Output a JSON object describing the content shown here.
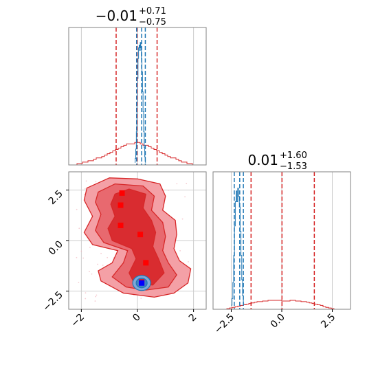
{
  "colors": {
    "red": "#d62728",
    "blue": "#1f77b4",
    "marker_red": "#ff0000",
    "marker_blue": "#0000ff",
    "grid": "#cccccc",
    "frame": "#808080"
  },
  "titles": {
    "x": {
      "main": "−0.01",
      "sup": "+0.71",
      "sub": "−0.75"
    },
    "y": {
      "main": "0.01",
      "sup": "+1.60",
      "sub": "−1.53"
    }
  },
  "chart_data": {
    "type": "corner",
    "grid": true,
    "x_param": {
      "range": [
        -2.45,
        2.45
      ],
      "ticks": [
        -2,
        0,
        2
      ],
      "tick_labels": [
        "−2",
        "0",
        "2"
      ],
      "quantiles_red": [
        -0.76,
        -0.01,
        0.7
      ],
      "quantiles_blue": [
        -0.03,
        0.15,
        0.28
      ],
      "hist_red": {
        "edges_start": -2.45,
        "bin": 0.098,
        "values": [
          0,
          0,
          0,
          0.01,
          0.01,
          0.02,
          0.02,
          0.03,
          0.03,
          0.04,
          0.05,
          0.05,
          0.06,
          0.07,
          0.08,
          0.09,
          0.1,
          0.11,
          0.12,
          0.13,
          0.14,
          0.15,
          0.15,
          0.15,
          0.16,
          0.16,
          0.15,
          0.14,
          0.14,
          0.13,
          0.12,
          0.11,
          0.1,
          0.09,
          0.08,
          0.07,
          0.06,
          0.05,
          0.05,
          0.04,
          0.03,
          0.02,
          0.02,
          0.01,
          0.01,
          0.0,
          0.0,
          0.0,
          0.0,
          0.0
        ]
      },
      "hist_blue": {
        "edges_start": -0.1,
        "bin": 0.02,
        "values": [
          0.02,
          0.05,
          0.12,
          0.25,
          0.45,
          0.65,
          0.8,
          0.88,
          0.9,
          0.86,
          0.92,
          0.88,
          0.8,
          0.7,
          0.55,
          0.4,
          0.25,
          0.13,
          0.06,
          0.02
        ]
      }
    },
    "y_param": {
      "range": [
        -3.4,
        3.4
      ],
      "ticks": [
        -2.5,
        0.0,
        2.5
      ],
      "tick_labels": [
        "−2.5",
        "0.0",
        "2.5"
      ],
      "quantiles_red": [
        -1.52,
        0.01,
        1.61
      ],
      "quantiles_blue": [
        -2.35,
        -2.08,
        -1.9
      ],
      "hist_red": {
        "edges_start": -3.4,
        "bin": 0.136,
        "values": [
          0,
          0,
          0,
          0,
          0,
          0.005,
          0.01,
          0.015,
          0.02,
          0.025,
          0.03,
          0.035,
          0.04,
          0.045,
          0.05,
          0.055,
          0.06,
          0.06,
          0.065,
          0.065,
          0.07,
          0.07,
          0.07,
          0.07,
          0.07,
          0.065,
          0.065,
          0.065,
          0.07,
          0.07,
          0.065,
          0.065,
          0.06,
          0.06,
          0.055,
          0.05,
          0.045,
          0.04,
          0.035,
          0.03,
          0.02,
          0.015,
          0.01,
          0.005,
          0,
          0,
          0,
          0,
          0,
          0
        ]
      },
      "hist_blue": {
        "edges_start": -2.5,
        "bin": 0.04,
        "values": [
          0.03,
          0.08,
          0.2,
          0.4,
          0.62,
          0.8,
          0.88,
          0.8,
          0.9,
          0.84,
          0.76,
          0.58,
          0.4,
          0.22,
          0.1,
          0.04
        ]
      }
    },
    "joint": {
      "xlim": [
        -2.45,
        2.45
      ],
      "ylim": [
        -3.4,
        3.4
      ],
      "red_markers": [
        [
          -0.55,
          2.35
        ],
        [
          -0.6,
          1.75
        ],
        [
          -0.6,
          0.75
        ],
        [
          0.1,
          0.3
        ],
        [
          0.3,
          -1.1
        ],
        [
          0.15,
          -2.05
        ]
      ],
      "blue_marker": [
        0.15,
        -2.1
      ]
    }
  }
}
